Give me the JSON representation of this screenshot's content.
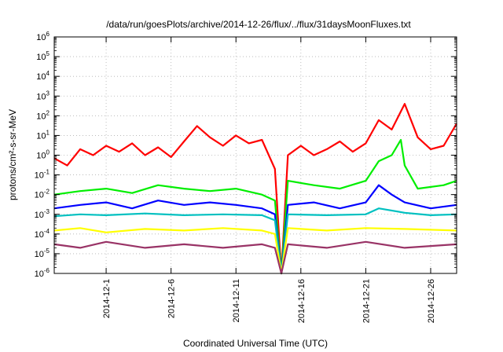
{
  "chart_data": {
    "type": "line",
    "title": "/data/run/goesPlots/archive/2014-12-26/flux/../flux/31daysMoonFluxes.txt",
    "xlabel": "Coordinated Universal Time (UTC)",
    "ylabel": "protons/cm²-s-sr-MeV",
    "xlim": [
      "2014-11-27",
      "2014-12-28"
    ],
    "ylim": [
      1e-06,
      1000000.0
    ],
    "yscale": "log",
    "grid": true,
    "x_tick_labels": [
      "2014-12-1",
      "2014-12-6",
      "2014-12-11",
      "2014-12-16",
      "2014-12-21",
      "2014-12-26"
    ],
    "y_tick_exponents": [
      -6,
      -5,
      -4,
      -3,
      -2,
      -1,
      0,
      1,
      2,
      3,
      4,
      5,
      6
    ],
    "y_tick_base": "10",
    "series": [
      {
        "color": "#ff0000",
        "points": [
          [
            "2014-11-27",
            0.7
          ],
          [
            "2014-11-28",
            0.3
          ],
          [
            "2014-11-29",
            2.0
          ],
          [
            "2014-11-30",
            1.0
          ],
          [
            "2014-12-1",
            3.0
          ],
          [
            "2014-12-2",
            1.5
          ],
          [
            "2014-12-3",
            4.0
          ],
          [
            "2014-12-4",
            1.0
          ],
          [
            "2014-12-5",
            2.5
          ],
          [
            "2014-12-6",
            0.8
          ],
          [
            "2014-12-7",
            5.0
          ],
          [
            "2014-12-8",
            30
          ],
          [
            "2014-12-9",
            8
          ],
          [
            "2014-12-10",
            3
          ],
          [
            "2014-12-11",
            10
          ],
          [
            "2014-12-12",
            4
          ],
          [
            "2014-12-13",
            6
          ],
          [
            "2014-12-14",
            0.2
          ],
          [
            "2014-12-14.5",
            1e-06
          ],
          [
            "2014-12-15",
            1.0
          ],
          [
            "2014-12-16",
            3.0
          ],
          [
            "2014-12-17",
            1.0
          ],
          [
            "2014-12-18",
            2.0
          ],
          [
            "2014-12-19",
            5.0
          ],
          [
            "2014-12-20",
            1.5
          ],
          [
            "2014-12-21",
            4.0
          ],
          [
            "2014-12-22",
            60
          ],
          [
            "2014-12-23",
            20
          ],
          [
            "2014-12-24",
            400
          ],
          [
            "2014-12-25",
            8
          ],
          [
            "2014-12-26",
            2.0
          ],
          [
            "2014-12-27",
            3.0
          ],
          [
            "2014-12-28",
            40
          ]
        ]
      },
      {
        "color": "#00ee00",
        "points": [
          [
            "2014-11-27",
            0.01
          ],
          [
            "2014-11-29",
            0.015
          ],
          [
            "2014-12-1",
            0.02
          ],
          [
            "2014-12-3",
            0.012
          ],
          [
            "2014-12-5",
            0.03
          ],
          [
            "2014-12-7",
            0.02
          ],
          [
            "2014-12-9",
            0.015
          ],
          [
            "2014-12-11",
            0.02
          ],
          [
            "2014-12-13",
            0.01
          ],
          [
            "2014-12-14",
            0.005
          ],
          [
            "2014-12-14.5",
            1e-06
          ],
          [
            "2014-12-15",
            0.05
          ],
          [
            "2014-12-17",
            0.03
          ],
          [
            "2014-12-19",
            0.02
          ],
          [
            "2014-12-21",
            0.05
          ],
          [
            "2014-12-22",
            0.5
          ],
          [
            "2014-12-23",
            1.0
          ],
          [
            "2014-12-23.7",
            6.0
          ],
          [
            "2014-12-24",
            0.3
          ],
          [
            "2014-12-25",
            0.02
          ],
          [
            "2014-12-27",
            0.03
          ],
          [
            "2014-12-28",
            0.05
          ]
        ]
      },
      {
        "color": "#0000ff",
        "points": [
          [
            "2014-11-27",
            0.002
          ],
          [
            "2014-11-29",
            0.003
          ],
          [
            "2014-12-1",
            0.004
          ],
          [
            "2014-12-3",
            0.002
          ],
          [
            "2014-12-5",
            0.005
          ],
          [
            "2014-12-7",
            0.003
          ],
          [
            "2014-12-9",
            0.004
          ],
          [
            "2014-12-11",
            0.003
          ],
          [
            "2014-12-13",
            0.002
          ],
          [
            "2014-12-14",
            0.001
          ],
          [
            "2014-12-14.5",
            1e-06
          ],
          [
            "2014-12-15",
            0.003
          ],
          [
            "2014-12-17",
            0.004
          ],
          [
            "2014-12-19",
            0.002
          ],
          [
            "2014-12-21",
            0.004
          ],
          [
            "2014-12-22",
            0.03
          ],
          [
            "2014-12-23",
            0.01
          ],
          [
            "2014-12-24",
            0.004
          ],
          [
            "2014-12-26",
            0.002
          ],
          [
            "2014-12-28",
            0.003
          ]
        ]
      },
      {
        "color": "#00c0c0",
        "points": [
          [
            "2014-11-27",
            0.0008
          ],
          [
            "2014-11-29",
            0.001
          ],
          [
            "2014-12-1",
            0.0009
          ],
          [
            "2014-12-4",
            0.0011
          ],
          [
            "2014-12-7",
            0.0009
          ],
          [
            "2014-12-10",
            0.001
          ],
          [
            "2014-12-13",
            0.0009
          ],
          [
            "2014-12-14",
            0.0005
          ],
          [
            "2014-12-14.5",
            1e-06
          ],
          [
            "2014-12-15",
            0.001
          ],
          [
            "2014-12-18",
            0.0009
          ],
          [
            "2014-12-21",
            0.001
          ],
          [
            "2014-12-22",
            0.002
          ],
          [
            "2014-12-24",
            0.0012
          ],
          [
            "2014-12-26",
            0.0009
          ],
          [
            "2014-12-28",
            0.001
          ]
        ]
      },
      {
        "color": "#ffff00",
        "points": [
          [
            "2014-11-27",
            0.00015
          ],
          [
            "2014-11-29",
            0.0002
          ],
          [
            "2014-12-1",
            0.00012
          ],
          [
            "2014-12-4",
            0.00018
          ],
          [
            "2014-12-7",
            0.00015
          ],
          [
            "2014-12-10",
            0.0002
          ],
          [
            "2014-12-13",
            0.00015
          ],
          [
            "2014-12-14",
            0.0001
          ],
          [
            "2014-12-14.5",
            1e-06
          ],
          [
            "2014-12-15",
            0.0002
          ],
          [
            "2014-12-18",
            0.00015
          ],
          [
            "2014-12-21",
            0.0002
          ],
          [
            "2014-12-24",
            0.00018
          ],
          [
            "2014-12-28",
            0.00015
          ]
        ]
      },
      {
        "color": "#993366",
        "points": [
          [
            "2014-11-27",
            3e-05
          ],
          [
            "2014-11-29",
            2e-05
          ],
          [
            "2014-12-1",
            4e-05
          ],
          [
            "2014-12-4",
            2e-05
          ],
          [
            "2014-12-7",
            3e-05
          ],
          [
            "2014-12-10",
            2e-05
          ],
          [
            "2014-12-13",
            3e-05
          ],
          [
            "2014-12-14",
            2e-05
          ],
          [
            "2014-12-14.5",
            1e-06
          ],
          [
            "2014-12-15",
            3e-05
          ],
          [
            "2014-12-18",
            2e-05
          ],
          [
            "2014-12-21",
            4e-05
          ],
          [
            "2014-12-24",
            2e-05
          ],
          [
            "2014-12-28",
            3e-05
          ]
        ]
      }
    ]
  }
}
